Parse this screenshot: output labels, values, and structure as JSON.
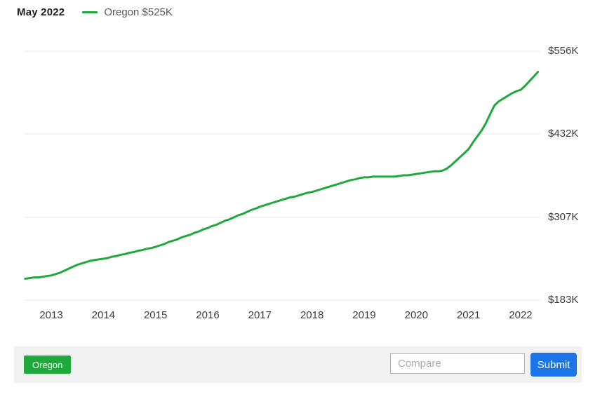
{
  "header": {
    "date_label": "May 2022",
    "legend_label": "Oregon $525K"
  },
  "footer": {
    "region_tag": "Oregon",
    "compare_placeholder": "Compare",
    "submit_label": "Submit"
  },
  "colors": {
    "line_green": "#1fa83c",
    "tag_green": "#1fa83c",
    "submit_blue": "#1b74e8",
    "grid_gray": "#e9e9ea",
    "footer_gray": "#f1f1f2"
  },
  "chart_data": {
    "type": "line",
    "title": "May 2022",
    "legend": [
      {
        "name": "Oregon",
        "latest_value": "$525K",
        "color": "#1fa83c",
        "position": "top-left"
      }
    ],
    "grid": "horizontal",
    "x_ticks": [
      2013,
      2014,
      2015,
      2016,
      2017,
      2018,
      2019,
      2020,
      2021,
      2022
    ],
    "y_axis": {
      "side": "right",
      "unit": "$K",
      "min": 183,
      "max": 556
    },
    "y_ticks": [
      {
        "label": "$556K",
        "value": 556
      },
      {
        "label": "$432K",
        "value": 432
      },
      {
        "label": "$307K",
        "value": 307
      },
      {
        "label": "$183K",
        "value": 183
      }
    ],
    "series": [
      {
        "name": "Oregon",
        "unit": "thousand USD",
        "start": "2012-07",
        "interval": "monthly",
        "end": "2022-05",
        "values": [
          215,
          216,
          217,
          217,
          218,
          219,
          220,
          222,
          224,
          227,
          230,
          233,
          236,
          238,
          240,
          242,
          243,
          244,
          245,
          246,
          248,
          249,
          251,
          252,
          254,
          255,
          257,
          258,
          260,
          261,
          263,
          265,
          267,
          270,
          272,
          274,
          277,
          279,
          281,
          284,
          286,
          289,
          291,
          294,
          296,
          299,
          302,
          304,
          307,
          310,
          312,
          315,
          318,
          320,
          323,
          325,
          327,
          329,
          331,
          333,
          335,
          337,
          338,
          340,
          342,
          344,
          345,
          347,
          349,
          351,
          353,
          355,
          357,
          359,
          361,
          363,
          364,
          366,
          367,
          367,
          368,
          368,
          368,
          368,
          368,
          368,
          369,
          370,
          370,
          371,
          372,
          373,
          374,
          375,
          376,
          376,
          377,
          380,
          385,
          391,
          397,
          403,
          409,
          419,
          428,
          437,
          448,
          462,
          475,
          481,
          485,
          489,
          493,
          496,
          498,
          504,
          511,
          518,
          525
        ]
      }
    ]
  }
}
